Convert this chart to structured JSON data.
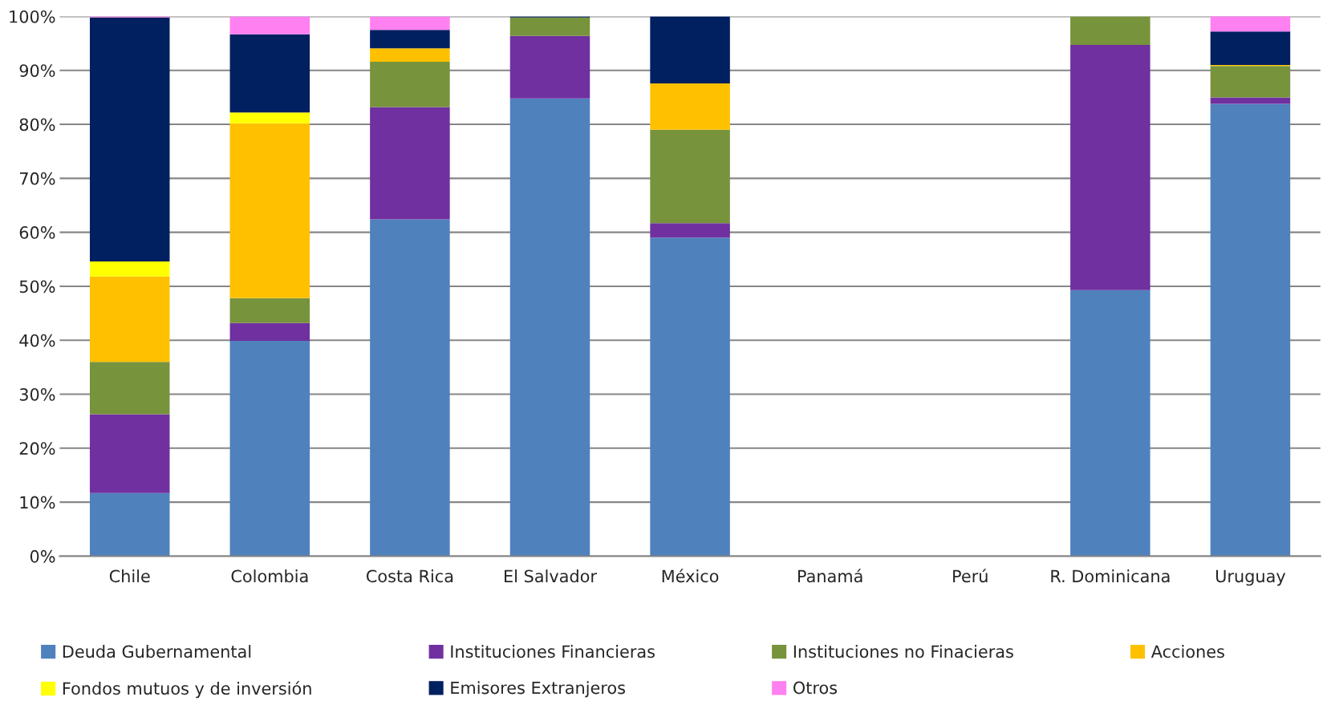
{
  "chart_data": {
    "type": "bar",
    "stacked": true,
    "categories": [
      "Chile",
      "Colombia",
      "Costa Rica",
      "El Salvador",
      "México",
      "Panamá",
      "Perú",
      "R. Dominicana",
      "Uruguay"
    ],
    "series": [
      {
        "name": "Deuda Gubernamental",
        "color": "#4f81bd",
        "values": [
          11.7,
          39.9,
          62.4,
          84.8,
          59.0,
          null,
          null,
          49.3,
          83.8
        ]
      },
      {
        "name": "Instituciones Financieras",
        "color": "#7030a0",
        "values": [
          14.6,
          3.3,
          20.8,
          11.6,
          2.7,
          null,
          null,
          45.4,
          1.2
        ]
      },
      {
        "name": "Instituciones no Finacieras",
        "color": "#77933c",
        "values": [
          9.7,
          4.6,
          8.4,
          3.4,
          17.3,
          null,
          null,
          5.3,
          5.8
        ]
      },
      {
        "name": "Acciones",
        "color": "#ffc000",
        "values": [
          15.8,
          32.4,
          2.5,
          null,
          8.6,
          null,
          null,
          null,
          0.2
        ]
      },
      {
        "name": "Fondos mutuos y de inversión",
        "color": "#ffff00",
        "values": [
          2.8,
          2.0,
          null,
          null,
          null,
          null,
          null,
          null,
          null
        ]
      },
      {
        "name": "Emisores Extranjeros",
        "color": "#002060",
        "values": [
          45.2,
          14.5,
          3.4,
          0.2,
          12.4,
          null,
          null,
          null,
          6.2
        ]
      },
      {
        "name": "Otros",
        "color": "#ff80f0",
        "values": [
          0.2,
          3.3,
          2.5,
          null,
          null,
          null,
          null,
          null,
          3.0
        ]
      }
    ],
    "ylim": [
      0,
      100
    ],
    "yticks": [
      {
        "value": 0,
        "label": "0%"
      },
      {
        "value": 10,
        "label": "10%"
      },
      {
        "value": 20,
        "label": "20%"
      },
      {
        "value": 30,
        "label": "30%"
      },
      {
        "value": 40,
        "label": "40%"
      },
      {
        "value": 50,
        "label": "50%"
      },
      {
        "value": 60,
        "label": "60%"
      },
      {
        "value": 70,
        "label": "70%"
      },
      {
        "value": 80,
        "label": "80%"
      },
      {
        "value": 90,
        "label": "90%"
      },
      {
        "value": 100,
        "label": "100%"
      }
    ],
    "grid": "y",
    "legend": "bottom"
  }
}
